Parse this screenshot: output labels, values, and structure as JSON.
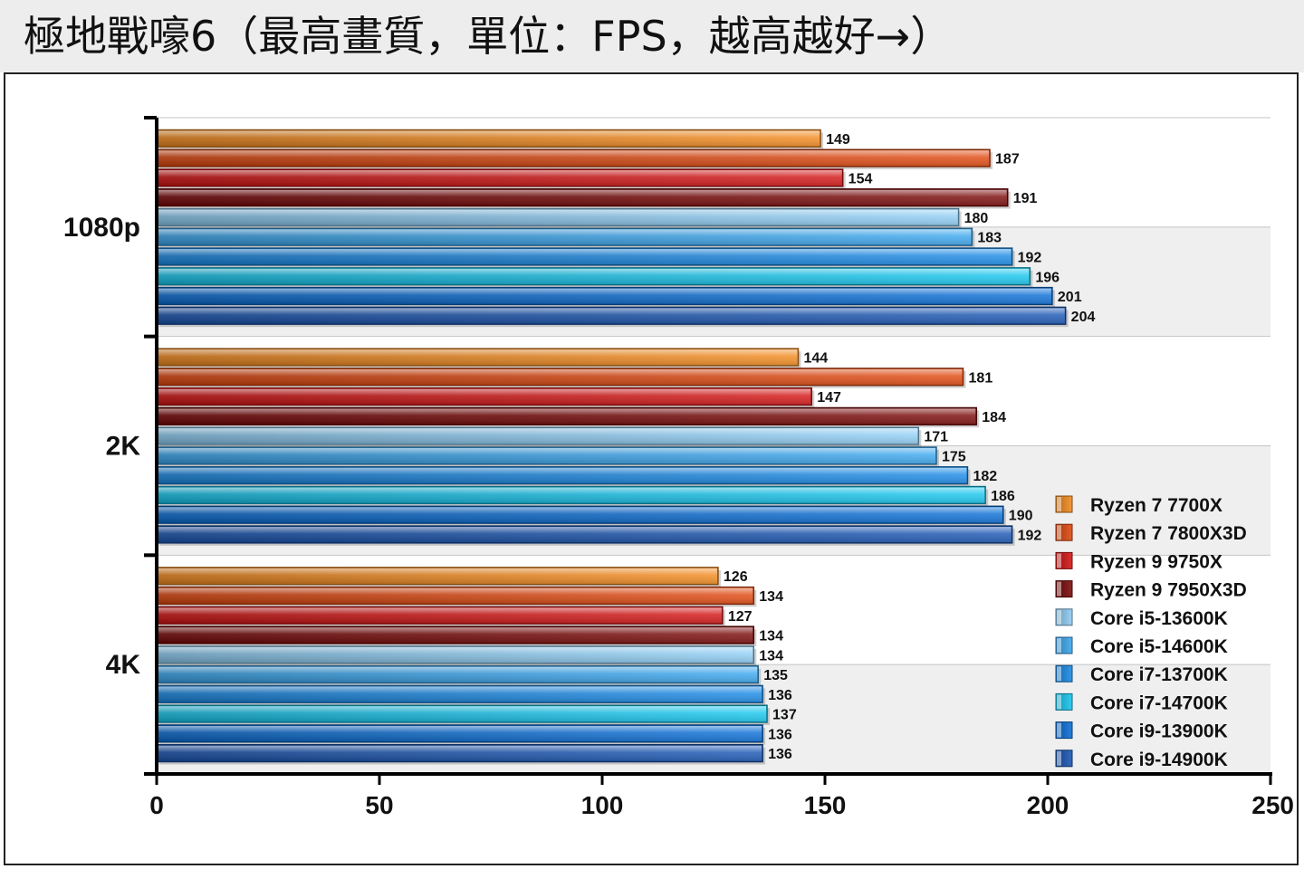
{
  "title": "極地戰嚎6（最高畫質，單位：FPS，越高越好→）",
  "chart_data": {
    "type": "bar",
    "orientation": "horizontal",
    "categories": [
      "1080p",
      "2K",
      "4K"
    ],
    "xlim": [
      0,
      250
    ],
    "xticks": [
      0,
      50,
      100,
      150,
      200,
      250
    ],
    "legend_position": "bottom-right",
    "series": [
      {
        "name": "Ryzen 7 7700X",
        "color": "#f28a1e",
        "values": [
          149,
          144,
          126
        ]
      },
      {
        "name": "Ryzen 7 7800X3D",
        "color": "#e0480f",
        "values": [
          187,
          181,
          134
        ]
      },
      {
        "name": "Ryzen 9 9750X",
        "color": "#d41414",
        "values": [
          154,
          147,
          127
        ]
      },
      {
        "name": "Ryzen 9 7950X3D",
        "color": "#7a0808",
        "values": [
          191,
          184,
          134
        ]
      },
      {
        "name": "Core i5-13600K",
        "color": "#8ecdf4",
        "values": [
          180,
          171,
          134
        ]
      },
      {
        "name": "Core i5-14600K",
        "color": "#3aa6ee",
        "values": [
          183,
          175,
          135
        ]
      },
      {
        "name": "Core i7-13700K",
        "color": "#1a8ae6",
        "values": [
          192,
          182,
          136
        ]
      },
      {
        "name": "Core i7-14700K",
        "color": "#16c6ee",
        "values": [
          196,
          186,
          137
        ]
      },
      {
        "name": "Core i9-13900K",
        "color": "#0a6ed6",
        "values": [
          201,
          190,
          136
        ]
      },
      {
        "name": "Core i9-14900K",
        "color": "#1a56b4",
        "values": [
          204,
          192,
          136
        ]
      }
    ]
  }
}
